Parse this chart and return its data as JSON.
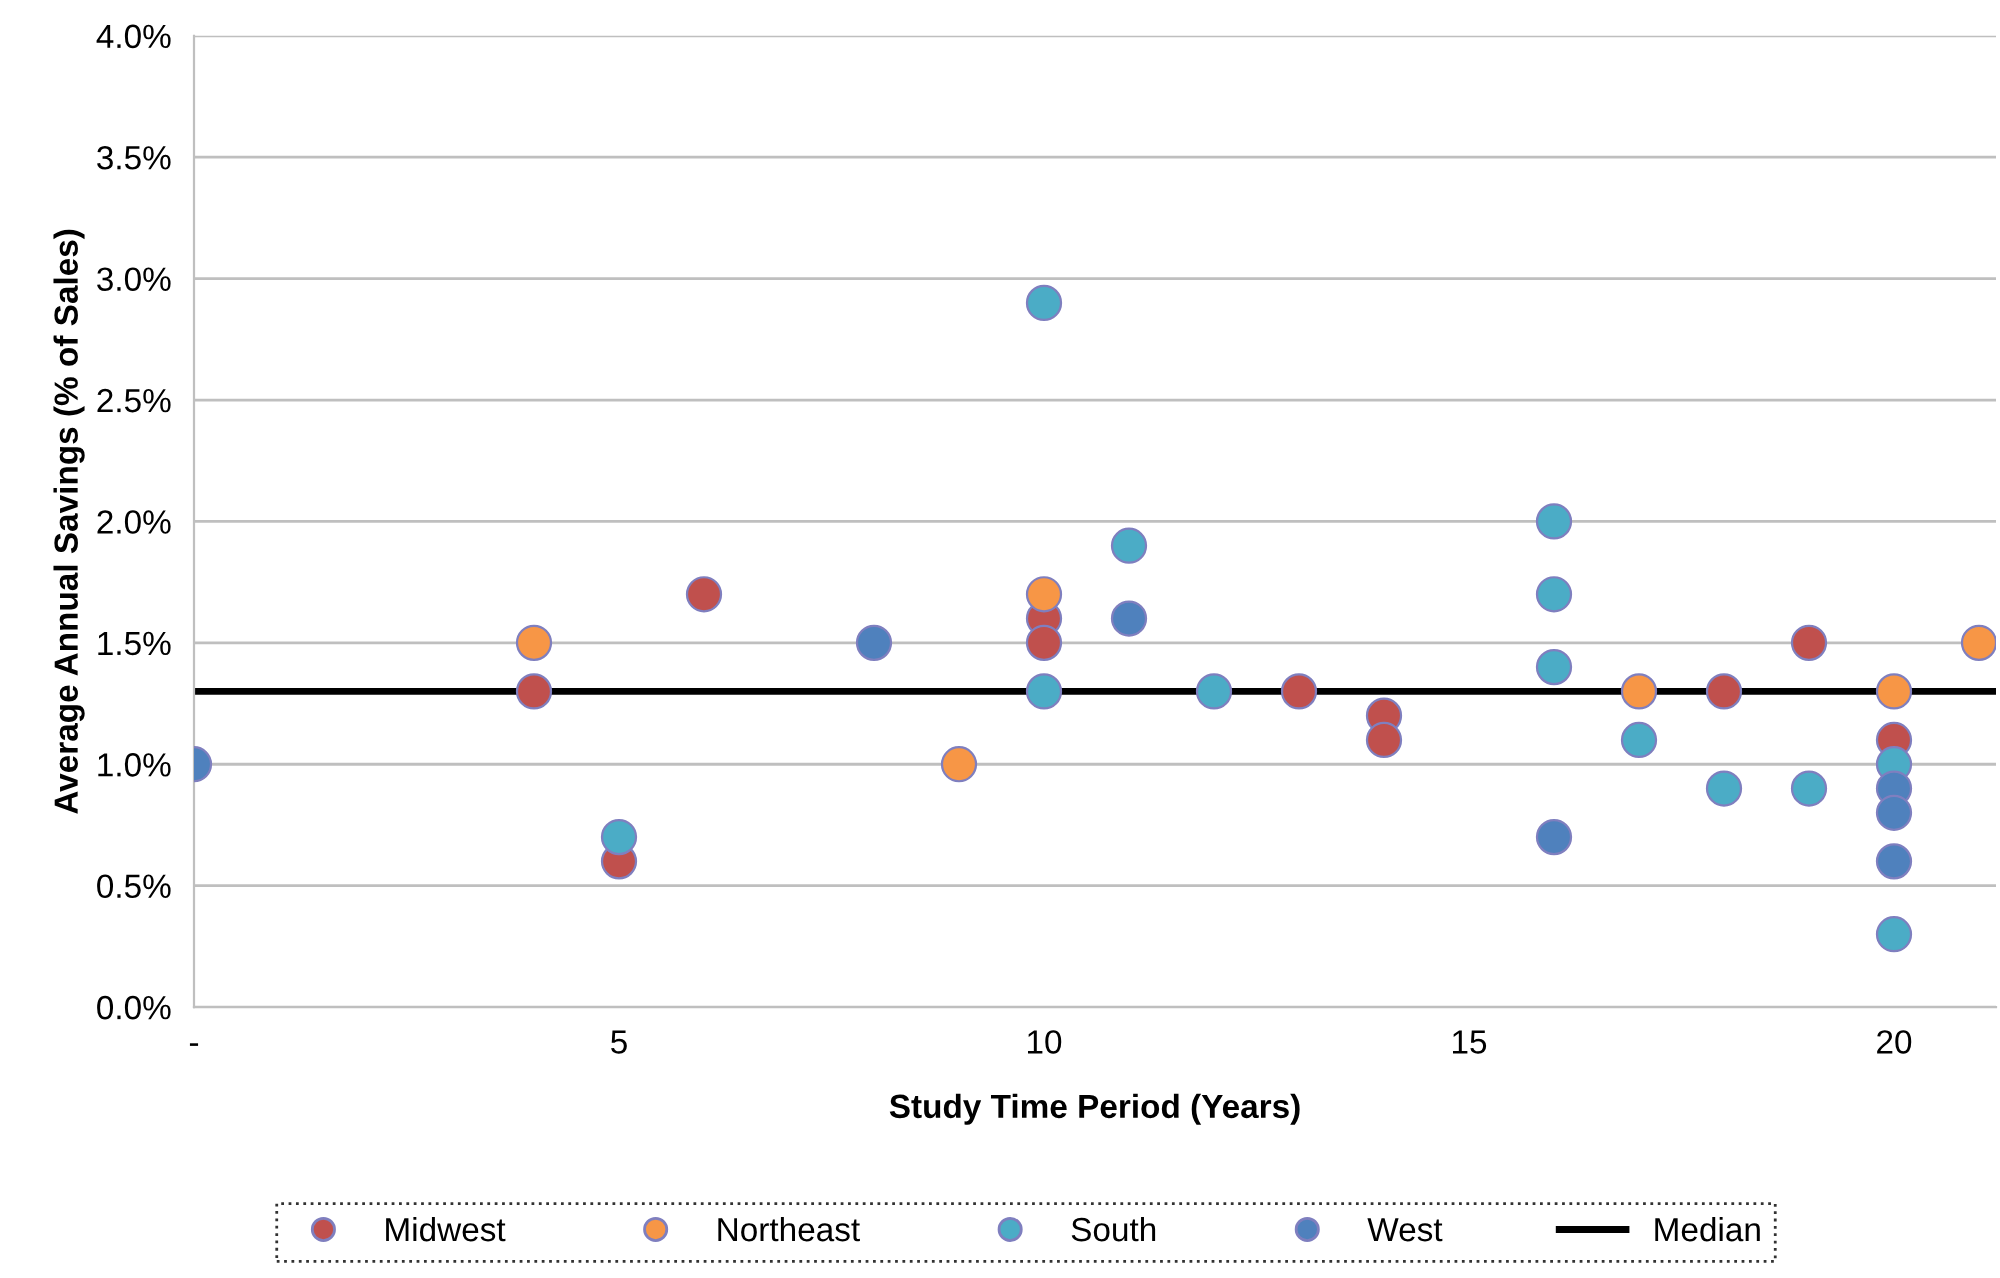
{
  "chart_data": {
    "type": "scatter",
    "xlabel": "Study Time Period (Years)",
    "ylabel": "Average Annual Savings (% of Sales)",
    "xlim": [
      0,
      21.2
    ],
    "xticks": [
      {
        "value": 0,
        "label": "-"
      },
      5,
      10,
      15,
      20
    ],
    "ylim": [
      0,
      4
    ],
    "yticks": [
      {
        "value": 0,
        "label": "0.0%"
      },
      {
        "value": 0.5,
        "label": "0.5%"
      },
      {
        "value": 1,
        "label": "1.0%"
      },
      {
        "value": 1.5,
        "label": "1.5%"
      },
      {
        "value": 2,
        "label": "2.0%"
      },
      {
        "value": 2.5,
        "label": "2.5%"
      },
      {
        "value": 3,
        "label": "3.0%"
      },
      {
        "value": 3.5,
        "label": "3.5%"
      },
      {
        "value": 4,
        "label": "4.0%"
      }
    ],
    "grid": "y",
    "legend": "bottom",
    "marker": "circle",
    "series": [
      {
        "name": "Midwest",
        "color": "#c0504d",
        "x": [
          4,
          5,
          6,
          10,
          10,
          13,
          14,
          14,
          18,
          19,
          20
        ],
        "values": [
          1.3,
          0.6,
          1.7,
          1.6,
          1.5,
          1.3,
          1.2,
          1.1,
          1.3,
          1.5,
          1.1
        ]
      },
      {
        "name": "Northeast",
        "color": "#f79646",
        "x": [
          4,
          9,
          10,
          17,
          20,
          21
        ],
        "values": [
          1.5,
          1.0,
          1.7,
          1.3,
          1.3,
          1.5
        ]
      },
      {
        "name": "South",
        "color": "#4bacc6",
        "x": [
          5,
          10,
          10,
          11,
          12,
          16,
          16,
          16,
          17,
          18,
          19,
          20,
          20
        ],
        "values": [
          0.7,
          2.9,
          1.3,
          1.9,
          1.3,
          2.0,
          1.7,
          1.4,
          1.1,
          0.9,
          0.9,
          1.0,
          0.3
        ]
      },
      {
        "name": "West",
        "color": "#4f81bd",
        "x": [
          0,
          8,
          11,
          16,
          20,
          20,
          20
        ],
        "values": [
          1.0,
          1.5,
          1.6,
          0.7,
          0.9,
          0.8,
          0.6
        ]
      }
    ],
    "ref_lines": [
      {
        "axis": "y",
        "value": 1.3,
        "label": "Median",
        "color": "#000000",
        "line_style": "solid"
      }
    ]
  }
}
